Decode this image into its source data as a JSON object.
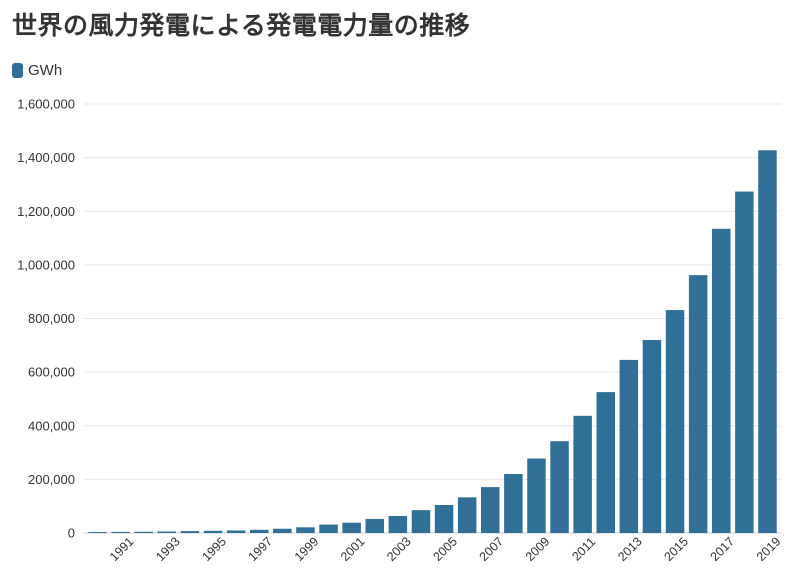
{
  "title": "世界の風力発電による発電電力量の推移",
  "legend": {
    "label": "GWh",
    "color": "#2f6f98"
  },
  "chart_data": {
    "type": "bar",
    "title": "世界の風力発電による発電電力量の推移",
    "xlabel": "",
    "ylabel": "",
    "ylim": [
      0,
      1600000
    ],
    "yticks": [
      0,
      200000,
      400000,
      600000,
      800000,
      1000000,
      1200000,
      1400000,
      1600000
    ],
    "ytick_labels": [
      "0",
      "200,000",
      "400,000",
      "600,000",
      "800,000",
      "1,000,000",
      "1,200,000",
      "1,400,000",
      "1,600,000"
    ],
    "grid": true,
    "legend_position": "top-left",
    "bar_color": "#2f6f98",
    "categories": [
      "1990",
      "1991",
      "1992",
      "1993",
      "1994",
      "1995",
      "1996",
      "1997",
      "1998",
      "1999",
      "2000",
      "2001",
      "2002",
      "2003",
      "2004",
      "2005",
      "2006",
      "2007",
      "2008",
      "2009",
      "2010",
      "2011",
      "2012",
      "2013",
      "2014",
      "2015",
      "2016",
      "2017",
      "2018",
      "2019"
    ],
    "xtick_labels": [
      "1991",
      "1993",
      "1995",
      "1997",
      "1999",
      "2001",
      "2003",
      "2005",
      "2007",
      "2009",
      "2011",
      "2013",
      "2015",
      "2017",
      "2019"
    ],
    "series": [
      {
        "name": "GWh",
        "values": [
          3600,
          4100,
          4700,
          5600,
          7100,
          8200,
          9300,
          11900,
          15900,
          21200,
          31400,
          38400,
          52300,
          63400,
          85200,
          104400,
          132900,
          171200,
          220000,
          277700,
          342200,
          437000,
          525400,
          645600,
          719900,
          831400,
          961600,
          1134500,
          1273400,
          1427300
        ]
      }
    ]
  }
}
